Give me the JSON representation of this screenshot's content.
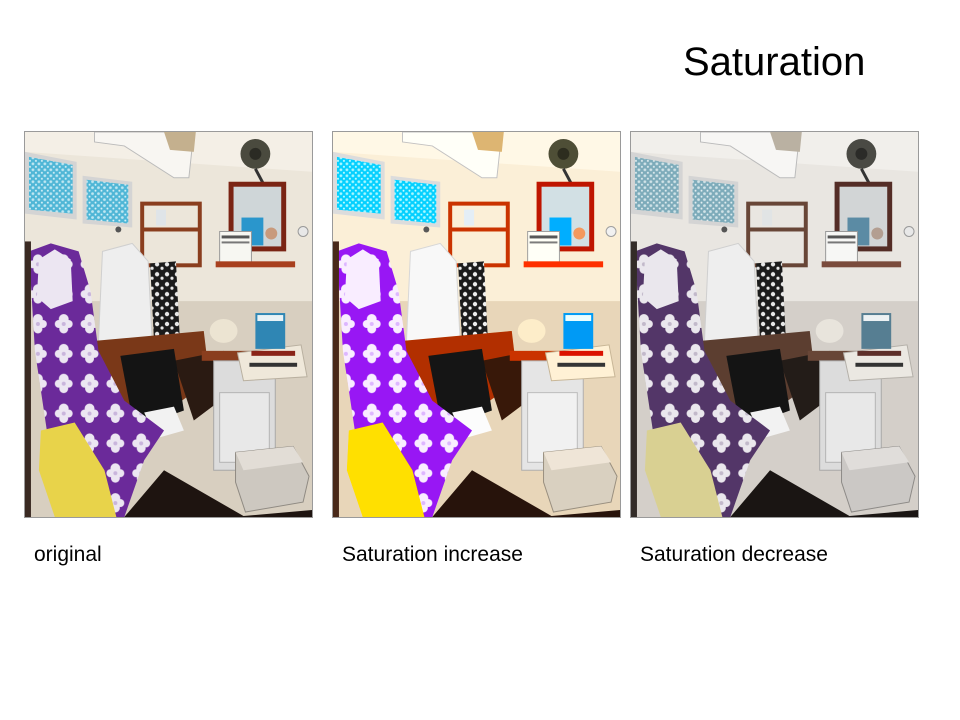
{
  "slide": {
    "title": "Saturation"
  },
  "panels": [
    {
      "caption": "original",
      "filter": "none"
    },
    {
      "caption": "Saturation increase",
      "filter": "saturate-increase"
    },
    {
      "caption": "Saturation decrease",
      "filter": "saturate-decrease"
    }
  ],
  "colors": {
    "background": "#ffffff",
    "text": "#000000",
    "panel_border": "#9a9a9a",
    "garment_purple": "#6b2a9a",
    "garment_yellow": "#e8d34a",
    "wood": "#8a3e1e",
    "wall": "#e9e3d8",
    "window_blue": "#4fb6d6"
  }
}
